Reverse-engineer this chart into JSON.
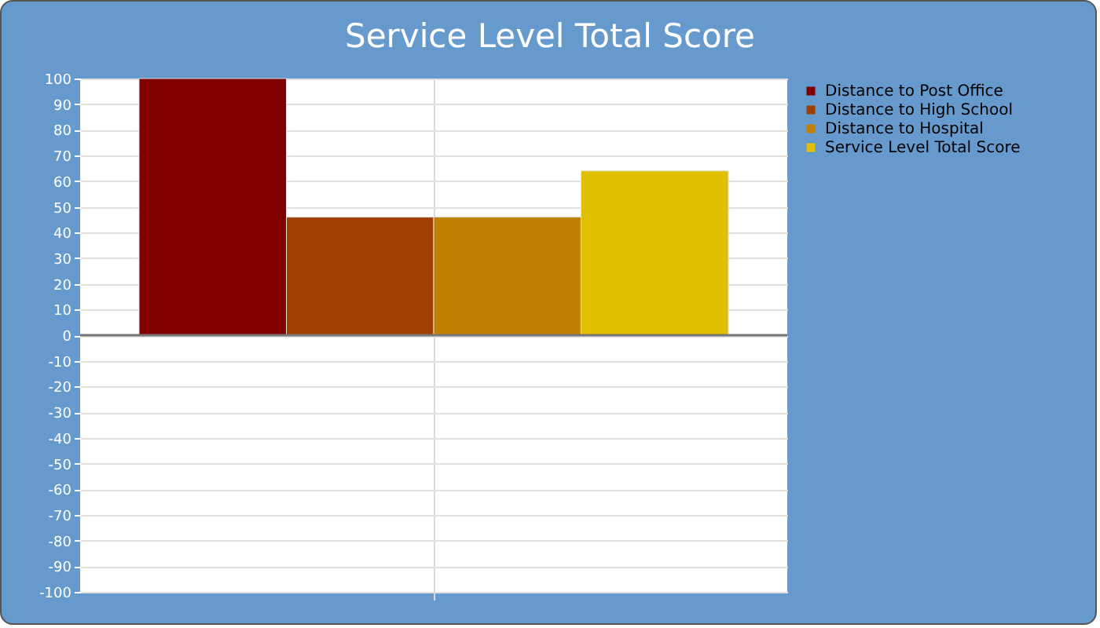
{
  "chart_data": {
    "type": "bar",
    "title": "Service Level Total Score",
    "categories": [
      null
    ],
    "series": [
      {
        "name": "Distance to Post Office",
        "color": "#800000",
        "values": [
          100
        ]
      },
      {
        "name": "Distance to High School",
        "color": "#a04000",
        "values": [
          46
        ]
      },
      {
        "name": "Distance to Hospital",
        "color": "#c08000",
        "values": [
          46
        ]
      },
      {
        "name": "Service Level Total Score",
        "color": "#e0c000",
        "values": [
          64
        ]
      }
    ],
    "ylim": [
      -100,
      100
    ],
    "yticks": [
      -100,
      -90,
      -80,
      -70,
      -60,
      -50,
      -40,
      -30,
      -20,
      -10,
      0,
      10,
      20,
      30,
      40,
      50,
      60,
      70,
      80,
      90,
      100
    ],
    "grid": true,
    "legend": "right",
    "tick_labels": "y",
    "ref_lines": [
      {
        "axis": "y",
        "value": 0,
        "color": "#777777"
      }
    ]
  }
}
